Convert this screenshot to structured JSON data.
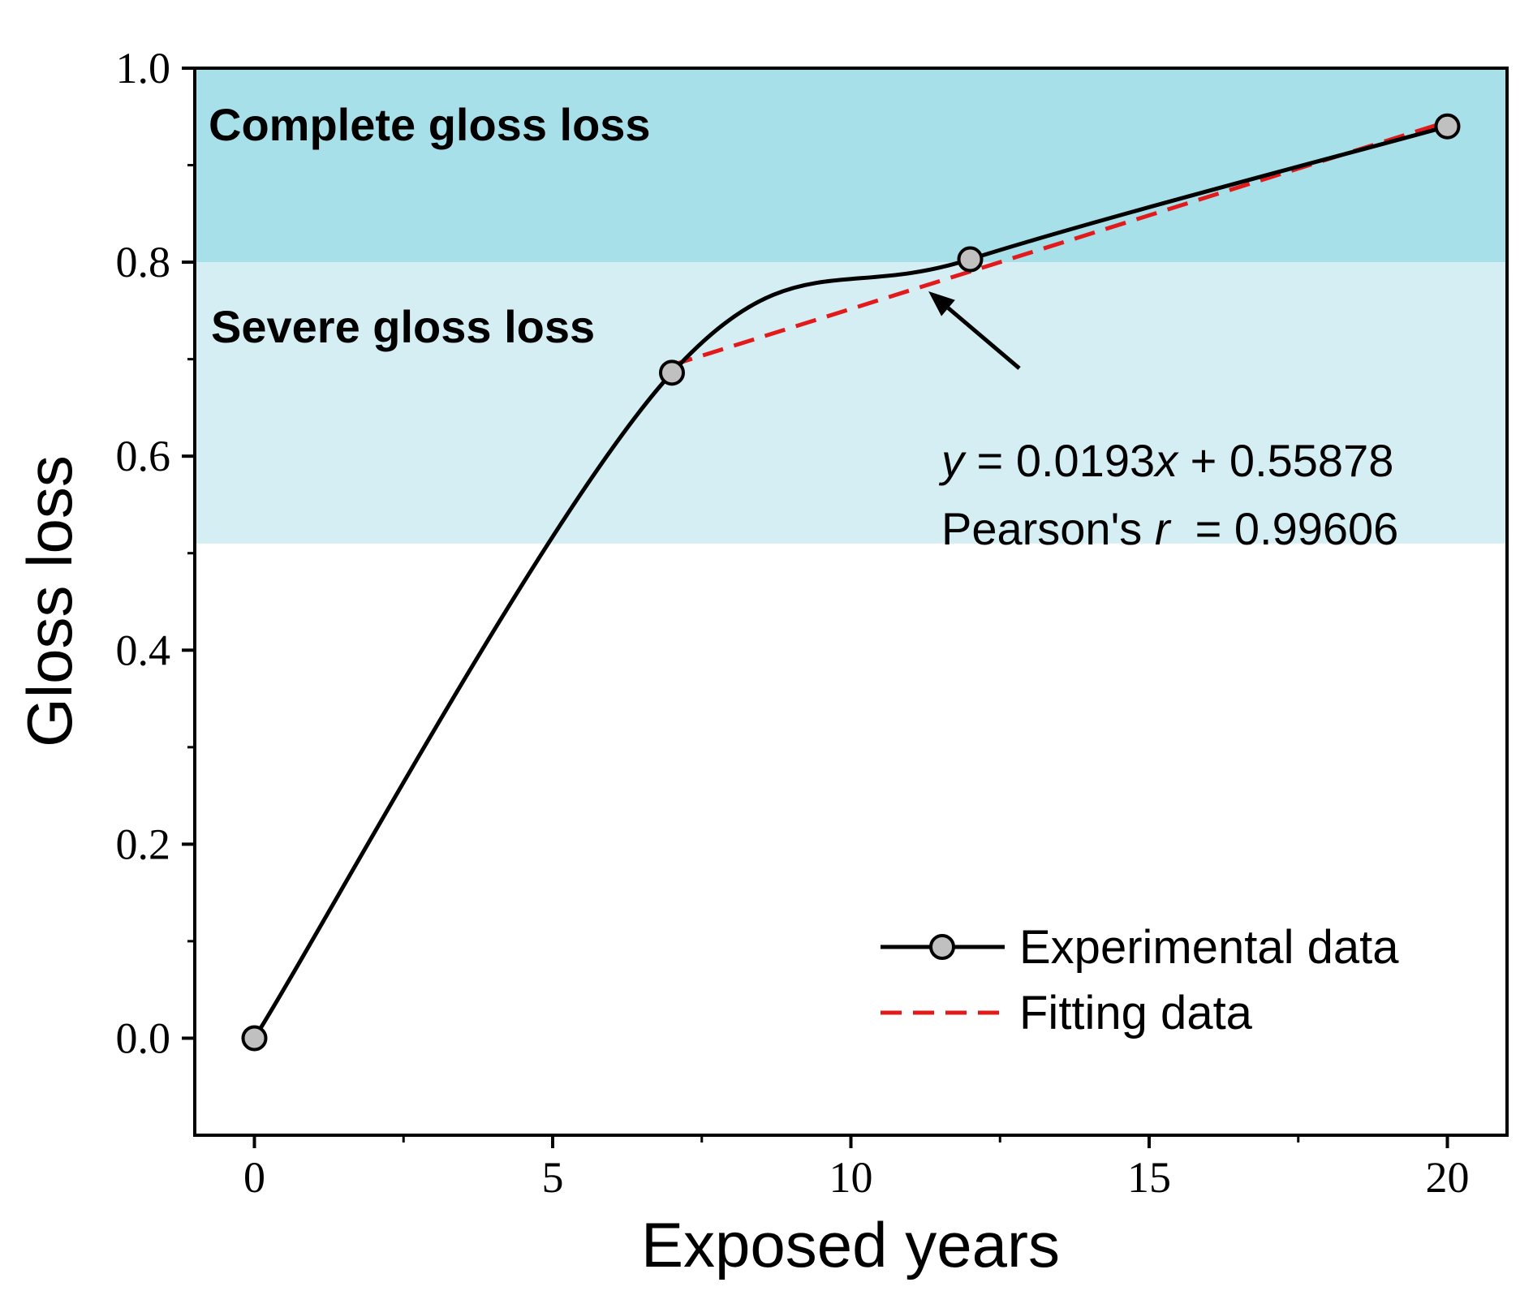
{
  "chart_data": {
    "type": "line",
    "xlabel": "Exposed years",
    "ylabel": "Gloss loss",
    "xlim": [
      -1,
      21
    ],
    "ylim": [
      -0.1,
      1.0
    ],
    "x_ticks": [
      0,
      5,
      10,
      15,
      20
    ],
    "x_tick_labels": [
      "0",
      "5",
      "10",
      "15",
      "20"
    ],
    "y_ticks": [
      0.0,
      0.2,
      0.4,
      0.6,
      0.8,
      1.0
    ],
    "y_tick_labels": [
      "0.0",
      "0.2",
      "0.4",
      "0.6",
      "0.8",
      "1.0"
    ],
    "x_minor_ticks": [
      2.5,
      7.5,
      12.5,
      17.5
    ],
    "y_minor_ticks": [
      0.1,
      0.3,
      0.5,
      0.7,
      0.9
    ],
    "bands": [
      {
        "label": "Complete gloss loss",
        "y_from": 0.8,
        "y_to": 1.0,
        "color": "#a8e0ea"
      },
      {
        "label": "Severe gloss loss",
        "y_from": 0.51,
        "y_to": 0.8,
        "color": "#d5eef3"
      }
    ],
    "series": [
      {
        "name": "Experimental data",
        "style": "solid-smooth-with-markers",
        "color": "#000000",
        "marker_fill": "#c0c0c0",
        "x": [
          0,
          7,
          12,
          20
        ],
        "y": [
          0.0,
          0.686,
          0.803,
          0.94
        ]
      },
      {
        "name": "Fitting data",
        "style": "dashed",
        "color": "#e31a1c",
        "x": [
          7,
          20
        ],
        "y": [
          0.69388,
          0.94478
        ]
      }
    ],
    "annotation": {
      "equation_y": "y",
      "equation_rest": " = 0.0193",
      "equation_x": "x",
      "equation_tail": " + 0.55878",
      "pearson_prefix": "Pearson's ",
      "pearson_r": "r",
      "pearson_value": "  = 0.99606",
      "arrow_target": [
        11.3,
        0.77
      ]
    },
    "legend": {
      "position": "bottom-right"
    }
  }
}
